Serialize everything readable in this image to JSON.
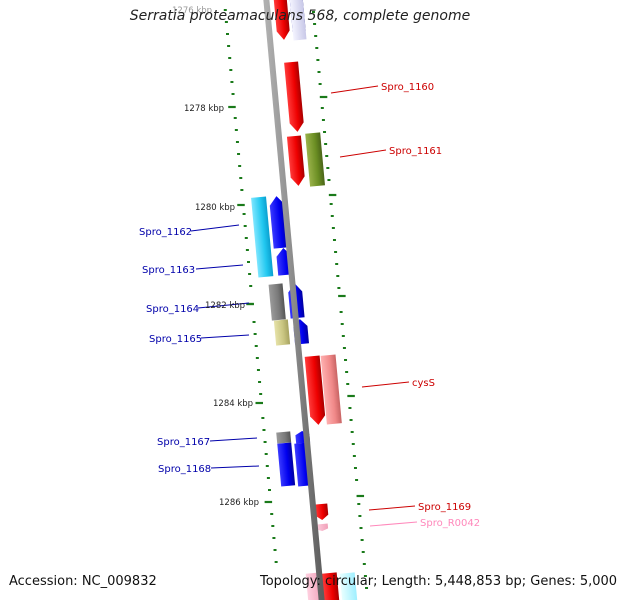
{
  "title": "Serratia proteamaculans 568, complete genome",
  "footer": {
    "accession": "Accession: NC_009832",
    "summary": "Topology: circular; Length: 5,448,853 bp; Genes: 5,000"
  },
  "colors": {
    "backbone": "#888888",
    "tick": "#1a7a1a",
    "label_red": "#cc0000",
    "label_blue": "#0000aa",
    "label_pink": "#ff88bb"
  },
  "scale_labels": [
    "1276 kbp",
    "1278 kbp",
    "1280 kbp",
    "1282 kbp",
    "1284 kbp",
    "1286 kbp"
  ],
  "gene_labels": [
    {
      "id": "Spro_1160",
      "side": "right",
      "color": "#cc0000"
    },
    {
      "id": "Spro_1161",
      "side": "right",
      "color": "#cc0000"
    },
    {
      "id": "Spro_1162",
      "side": "left",
      "color": "#0000aa"
    },
    {
      "id": "Spro_1163",
      "side": "left",
      "color": "#0000aa"
    },
    {
      "id": "Spro_1164",
      "side": "left",
      "color": "#0000aa"
    },
    {
      "id": "Spro_1165",
      "side": "left",
      "color": "#0000aa"
    },
    {
      "id": "cysS",
      "side": "right",
      "color": "#cc0000"
    },
    {
      "id": "Spro_1167",
      "side": "left",
      "color": "#0000aa"
    },
    {
      "id": "Spro_1168",
      "side": "left",
      "color": "#0000aa"
    },
    {
      "id": "Spro_1169",
      "side": "right",
      "color": "#cc0000"
    },
    {
      "id": "Spro_R0042",
      "side": "right",
      "color": "#ff88bb"
    }
  ]
}
